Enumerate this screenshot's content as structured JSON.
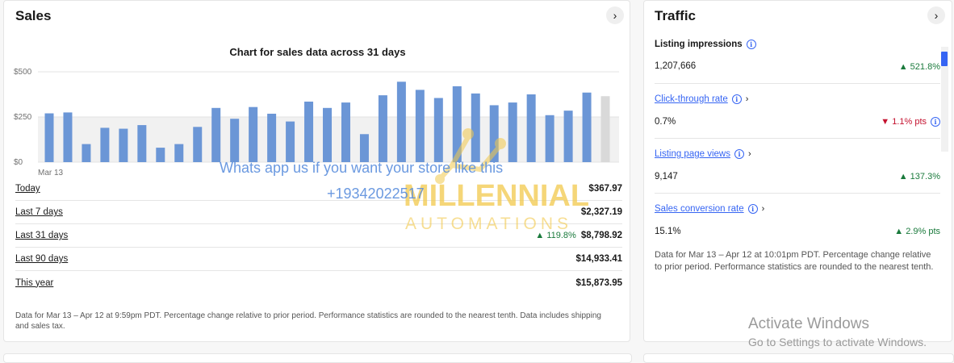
{
  "sales": {
    "title": "Sales",
    "chart_title": "Chart for sales data across 31 days",
    "rows": [
      {
        "label": "Today",
        "change": "",
        "value": "$367.97"
      },
      {
        "label": "Last 7 days",
        "change": "",
        "value": "$2,327.19"
      },
      {
        "label": "Last 31 days",
        "change": "▲ 119.8%",
        "value": "$8,798.92"
      },
      {
        "label": "Last 90 days",
        "change": "",
        "value": "$14,933.41"
      },
      {
        "label": "This year",
        "change": "",
        "value": "$15,873.95"
      }
    ],
    "footnote": "Data for Mar 13 – Apr 12 at 9:59pm PDT. Percentage change relative to prior period. Performance statistics are rounded to the nearest tenth. Data includes shipping and sales tax."
  },
  "chart_data": {
    "type": "bar",
    "title": "Chart for sales data across 31 days",
    "yticks": [
      "$500",
      "$250",
      "$0"
    ],
    "ylim": [
      0,
      500
    ],
    "first_x_label": "Mar 13",
    "values": [
      270,
      275,
      100,
      190,
      185,
      205,
      80,
      100,
      195,
      300,
      240,
      305,
      268,
      225,
      335,
      300,
      330,
      155,
      370,
      445,
      400,
      355,
      420,
      380,
      315,
      330,
      375,
      260,
      285,
      385,
      365
    ],
    "bar_color": "#6b96d6",
    "last_bar_color": "#d9d9d9",
    "grid": true
  },
  "traffic": {
    "title": "Traffic",
    "metrics": [
      {
        "label": "Listing impressions",
        "value": "1,207,666",
        "change": "▲ 521.8%",
        "is_link": false,
        "negative": false
      },
      {
        "label": "Click-through rate",
        "value": "0.7%",
        "change": "▼ 1.1% pts",
        "is_link": true,
        "negative": true
      },
      {
        "label": "Listing page views",
        "value": "9,147",
        "change": "▲ 137.3%",
        "is_link": true,
        "negative": false
      },
      {
        "label": "Sales conversion rate",
        "value": "15.1%",
        "change": "▲ 2.9% pts",
        "is_link": true,
        "negative": false
      }
    ],
    "footnote": "Data for Mar 13 – Apr 12 at 10:01pm PDT. Percentage change relative to prior period. Performance statistics are rounded to the nearest tenth."
  },
  "watermark": {
    "line1": "Whats app us if you want your store like this",
    "line2": "+19342022517",
    "brand": "MILLENNIAL",
    "brand_sub": "AUTOMATIONS"
  },
  "os_overlay": {
    "line1": "Activate Windows",
    "line2": "Go to Settings to activate Windows."
  },
  "icons": {
    "chevron": "chevron-right-icon",
    "info": "info-icon"
  }
}
